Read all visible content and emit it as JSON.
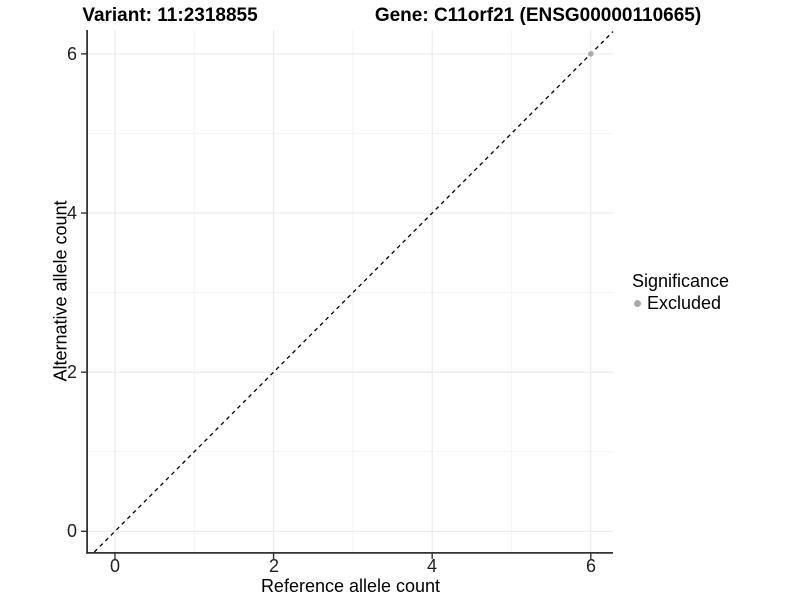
{
  "titles": {
    "variant": "Variant: 11:2318855",
    "gene": "Gene: C11orf21 (ENSG00000110665)"
  },
  "legend": {
    "title": "Significance",
    "items": [
      {
        "label": "Excluded",
        "color": "#ababab"
      }
    ]
  },
  "chart_data": {
    "type": "scatter",
    "title": "Variant: 11:2318855   Gene: C11orf21 (ENSG00000110665)",
    "xlabel": "Reference allele count",
    "ylabel": "Alternative allele count",
    "xlim": [
      -0.34,
      6.28
    ],
    "ylim": [
      -0.26,
      6.3
    ],
    "x_ticks": [
      0,
      2,
      4,
      6
    ],
    "y_ticks": [
      0,
      2,
      4,
      6
    ],
    "x_tick_labels": [
      "0",
      "2",
      "4",
      "6"
    ],
    "y_tick_labels": [
      "0",
      "2",
      "4",
      "6"
    ],
    "grid_minor": [
      1,
      3,
      5
    ],
    "grid": true,
    "legend_position": "right",
    "series": [
      {
        "name": "Excluded",
        "color": "#ababab",
        "points": [
          {
            "x": 6,
            "y": 6
          }
        ]
      }
    ],
    "reference_line": {
      "kind": "identity-abline",
      "slope": 1,
      "intercept": 0,
      "style": "dashed",
      "color": "#000000"
    },
    "style": {
      "panel_background": "#ffffff",
      "axis_color": "#333333",
      "grid_major_color": "#e9e9e9",
      "grid_minor_color": "#f4f4f4",
      "tick_label_color": "#1f1f1f"
    }
  }
}
